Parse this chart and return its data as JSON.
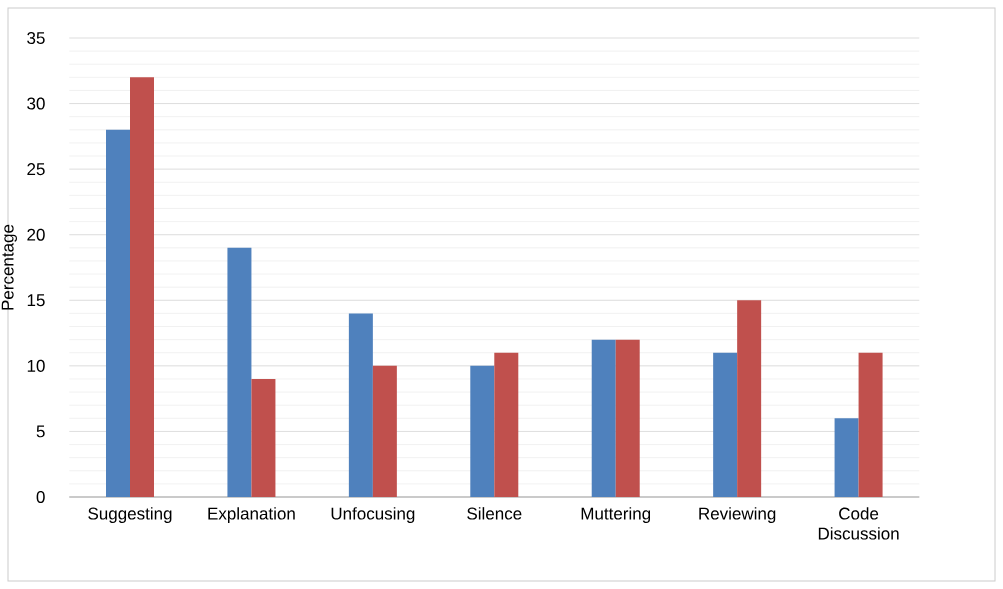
{
  "chart_data": {
    "type": "bar",
    "ylabel": "Percentage",
    "categories": [
      "Suggesting",
      "Explanation",
      "Unfocusing",
      "Silence",
      "Muttering",
      "Reviewing",
      "Code Discussion"
    ],
    "series": [
      {
        "color": "#4f81bd",
        "values": [
          28,
          19,
          14,
          10,
          12,
          11,
          6
        ]
      },
      {
        "color": "#c0504d",
        "values": [
          32,
          9,
          10,
          11,
          12,
          15,
          11
        ]
      }
    ],
    "ylim": [
      0,
      35
    ],
    "yticks": [
      0,
      5,
      10,
      15,
      20,
      25,
      30,
      35
    ],
    "grid": "y"
  }
}
